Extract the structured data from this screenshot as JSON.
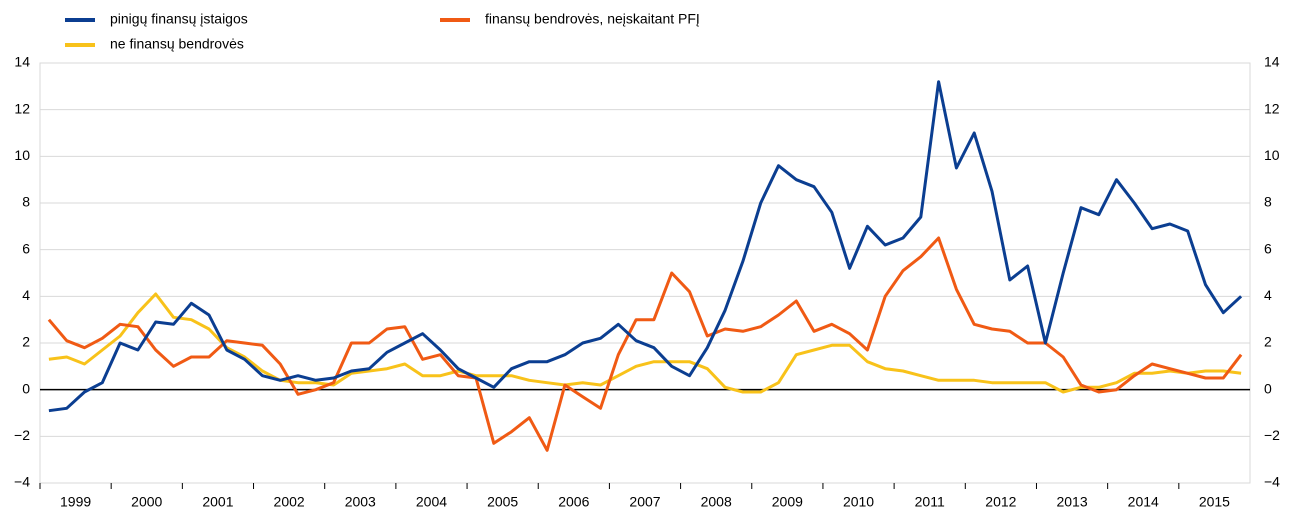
{
  "chart_data": {
    "type": "line",
    "categories": [
      "1999",
      null,
      null,
      null,
      "2000",
      null,
      null,
      null,
      "2001",
      null,
      null,
      null,
      "2002",
      null,
      null,
      null,
      "2003",
      null,
      null,
      null,
      "2004",
      null,
      null,
      null,
      "2005",
      null,
      null,
      null,
      "2006",
      null,
      null,
      null,
      "2007",
      null,
      null,
      null,
      "2008",
      null,
      null,
      null,
      "2009",
      null,
      null,
      null,
      "2010",
      null,
      null,
      null,
      "2011",
      null,
      null,
      null,
      "2012",
      null,
      null,
      null,
      "2013",
      null,
      null,
      null,
      "2014",
      null,
      null,
      null,
      "2015",
      null,
      null,
      null
    ],
    "series": [
      {
        "name": "pinigų finansų įstaigos",
        "color": "#0b3e91",
        "values": [
          -0.9,
          -0.8,
          -0.1,
          0.3,
          2.0,
          1.7,
          2.9,
          2.8,
          3.7,
          3.2,
          1.7,
          1.3,
          0.6,
          0.4,
          0.6,
          0.4,
          0.5,
          0.8,
          0.9,
          1.6,
          2.0,
          2.4,
          1.7,
          0.9,
          0.5,
          0.1,
          0.9,
          1.2,
          1.2,
          1.5,
          2.0,
          2.2,
          2.8,
          2.1,
          1.8,
          1.0,
          0.6,
          1.8,
          3.4,
          5.5,
          8.0,
          9.6,
          9.0,
          8.7,
          7.6,
          5.2,
          7.0,
          6.2,
          6.5,
          7.4,
          13.2,
          9.5,
          11.0,
          8.5,
          4.7,
          5.3,
          2.0,
          5.0,
          7.8,
          7.5,
          9.0,
          8.0,
          6.9,
          7.1,
          6.8,
          4.5,
          3.3,
          4.0
        ]
      },
      {
        "name": "finansų bendrovės, neįskaitant PFĮ",
        "color": "#f05a14",
        "values": [
          3.0,
          2.1,
          1.8,
          2.2,
          2.8,
          2.7,
          1.7,
          1.0,
          1.4,
          1.4,
          2.1,
          2.0,
          1.9,
          1.1,
          -0.2,
          0.0,
          0.3,
          2.0,
          2.0,
          2.6,
          2.7,
          1.3,
          1.5,
          0.6,
          0.5,
          -2.3,
          -1.8,
          -1.2,
          -2.6,
          0.2,
          -0.3,
          -0.8,
          1.5,
          3.0,
          3.0,
          5.0,
          4.2,
          2.3,
          2.6,
          2.5,
          2.7,
          3.2,
          3.8,
          2.5,
          2.8,
          2.4,
          1.7,
          4.0,
          5.1,
          5.7,
          6.5,
          4.3,
          2.8,
          2.6,
          2.5,
          2.0,
          2.0,
          1.4,
          0.2,
          -0.1,
          0.0,
          0.6,
          1.1,
          0.9,
          0.7,
          0.5,
          0.5,
          1.5
        ]
      },
      {
        "name": "ne finansų bendrovės",
        "color": "#f8c21a",
        "values": [
          1.3,
          1.4,
          1.1,
          1.7,
          2.3,
          3.3,
          4.1,
          3.1,
          3.0,
          2.6,
          1.8,
          1.4,
          0.8,
          0.4,
          0.3,
          0.3,
          0.2,
          0.7,
          0.8,
          0.9,
          1.1,
          0.6,
          0.6,
          0.8,
          0.6,
          0.6,
          0.6,
          0.4,
          0.3,
          0.2,
          0.3,
          0.2,
          0.6,
          1.0,
          1.2,
          1.2,
          1.2,
          0.9,
          0.1,
          -0.1,
          -0.1,
          0.3,
          1.5,
          1.7,
          1.9,
          1.9,
          1.2,
          0.9,
          0.8,
          0.6,
          0.4,
          0.4,
          0.4,
          0.3,
          0.3,
          0.3,
          0.3,
          -0.1,
          0.1,
          0.1,
          0.3,
          0.7,
          0.7,
          0.8,
          0.7,
          0.8,
          0.8,
          0.7
        ]
      }
    ],
    "ylim": [
      -4,
      14
    ],
    "yticks": [
      {
        "value": -4,
        "label": "−4"
      },
      {
        "value": -2,
        "label": "−2"
      },
      0,
      2,
      4,
      6,
      8,
      10,
      12,
      14
    ],
    "y2lim": [
      -4,
      14
    ],
    "y2ticks": [
      {
        "value": -4,
        "label": "−4"
      },
      {
        "value": -2,
        "label": "−2"
      },
      0,
      2,
      4,
      6,
      8,
      10,
      12,
      14
    ],
    "grid": true
  }
}
